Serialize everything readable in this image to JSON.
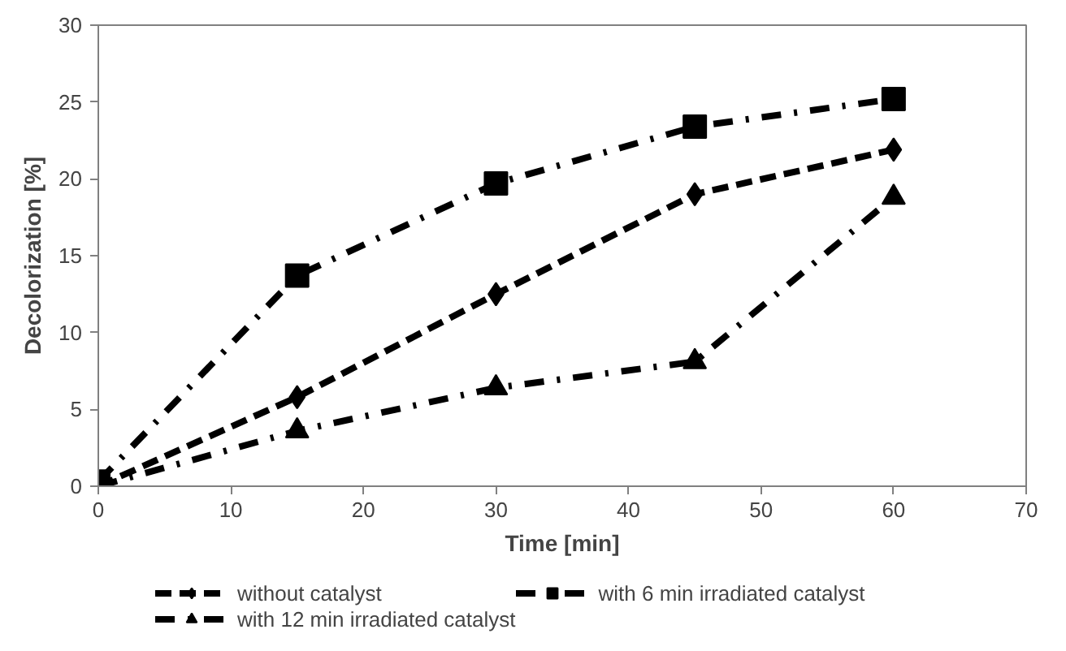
{
  "chart_data": {
    "type": "line",
    "xlabel": "Time [min]",
    "ylabel": "Decolorization [%]",
    "x": [
      0,
      15,
      30,
      45,
      60
    ],
    "series": [
      {
        "name": "without catalyst",
        "color": "#000000",
        "values": [
          0,
          5.8,
          12.5,
          19,
          21.9
        ],
        "marker": "diamond",
        "line_style": "dashed"
      },
      {
        "name": "with 12 min irradiated catalyst",
        "color": "#000000",
        "values": [
          0,
          3.6,
          6.4,
          8.1,
          18.8
        ],
        "marker": "triangle",
        "line_style": "dashdot"
      },
      {
        "name": "with 6 min irradiated catalyst",
        "color": "#000000",
        "values": [
          0.3,
          13.7,
          19.7,
          23.4,
          25.2
        ],
        "marker": "square",
        "line_style": "dashdot"
      }
    ],
    "xlim": [
      0,
      70
    ],
    "xticks": [
      0,
      10,
      20,
      30,
      40,
      50,
      60,
      70
    ],
    "ylim": [
      0,
      30
    ],
    "yticks": [
      0,
      5,
      10,
      15,
      20,
      25,
      30
    ],
    "grid": false,
    "legend": "bottom"
  }
}
